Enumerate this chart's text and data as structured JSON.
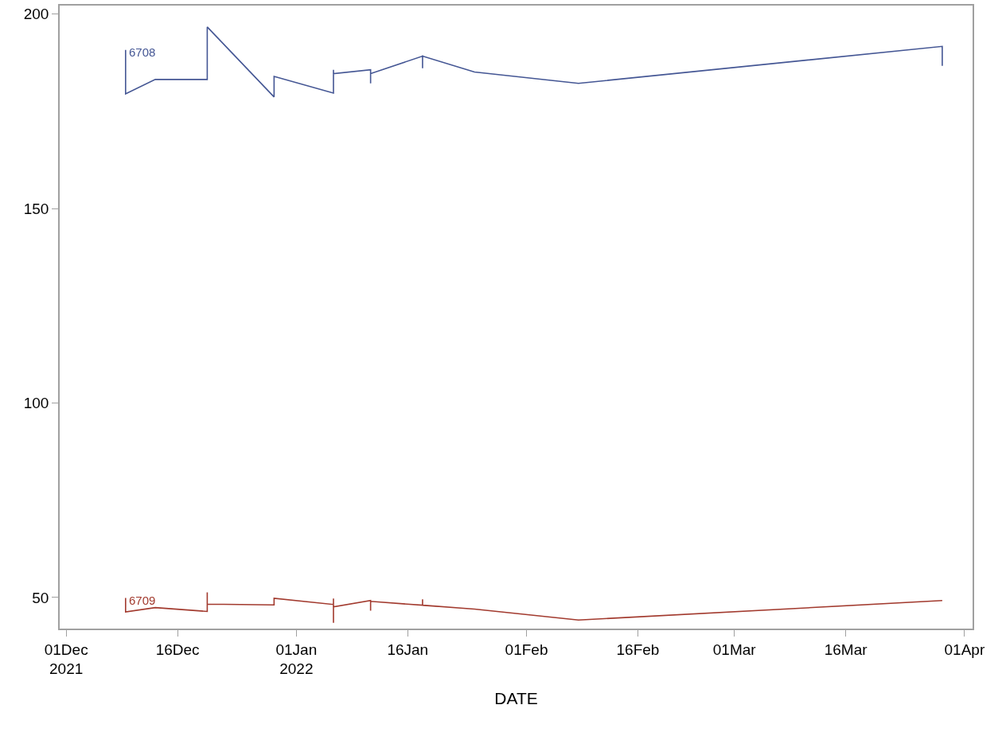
{
  "chart_data": {
    "type": "line",
    "xlabel": "DATE",
    "xlim": [
      "2021-11-30T03:00",
      "2022-04-02T02:00"
    ],
    "xticks": [
      {
        "value": "2021-12-01",
        "label": "01Dec\n2021"
      },
      {
        "value": "2021-12-16",
        "label": "16Dec"
      },
      {
        "value": "2022-01-01",
        "label": "01Jan\n2022"
      },
      {
        "value": "2022-01-16",
        "label": "16Jan"
      },
      {
        "value": "2022-02-01",
        "label": "01Feb"
      },
      {
        "value": "2022-02-16",
        "label": "16Feb"
      },
      {
        "value": "2022-03-01",
        "label": "01Mar"
      },
      {
        "value": "2022-03-16",
        "label": "16Mar"
      },
      {
        "value": "2022-04-01",
        "label": "01Apr"
      }
    ],
    "ylim": [
      42,
      202.2
    ],
    "yticks": [
      50,
      100,
      150,
      200
    ],
    "grid": false,
    "legend": false,
    "marker": "none",
    "line_style": "solid",
    "series": [
      {
        "name": "6708",
        "color": "#445694",
        "x": [
          "2021-12-09",
          "2021-12-09",
          "2021-12-13",
          "2021-12-20",
          "2021-12-20",
          "2021-12-29",
          "2021-12-29",
          "2022-01-06",
          "2022-01-06",
          "2022-01-06",
          "2022-01-11",
          "2022-01-11",
          "2022-01-11",
          "2022-01-18",
          "2022-01-18",
          "2022-01-18",
          "2022-01-25",
          "2022-02-08",
          "2022-03-29",
          "2022-03-29"
        ],
        "values": [
          190.8,
          179.5,
          183.2,
          183.2,
          196.7,
          178.7,
          184.0,
          179.7,
          185.7,
          184.7,
          185.7,
          182.2,
          184.7,
          189.2,
          186.1,
          189.2,
          185.1,
          182.2,
          191.7,
          186.7
        ]
      },
      {
        "name": "6709",
        "color": "#a23a2e",
        "x": [
          "2021-12-09",
          "2021-12-09",
          "2021-12-13",
          "2021-12-20",
          "2021-12-20",
          "2021-12-20",
          "2021-12-29",
          "2021-12-29",
          "2022-01-06",
          "2022-01-06",
          "2022-01-06",
          "2022-01-06",
          "2022-01-11",
          "2022-01-11",
          "2022-01-11",
          "2022-01-18",
          "2022-01-18",
          "2022-01-18",
          "2022-01-25",
          "2022-02-08",
          "2022-03-29"
        ],
        "values": [
          49.9,
          46.3,
          47.4,
          46.4,
          51.3,
          48.3,
          48.1,
          49.8,
          48.2,
          49.7,
          43.5,
          47.6,
          49.2,
          46.6,
          49.0,
          48.0,
          49.5,
          48.0,
          47.0,
          44.2,
          49.2
        ]
      }
    ]
  }
}
